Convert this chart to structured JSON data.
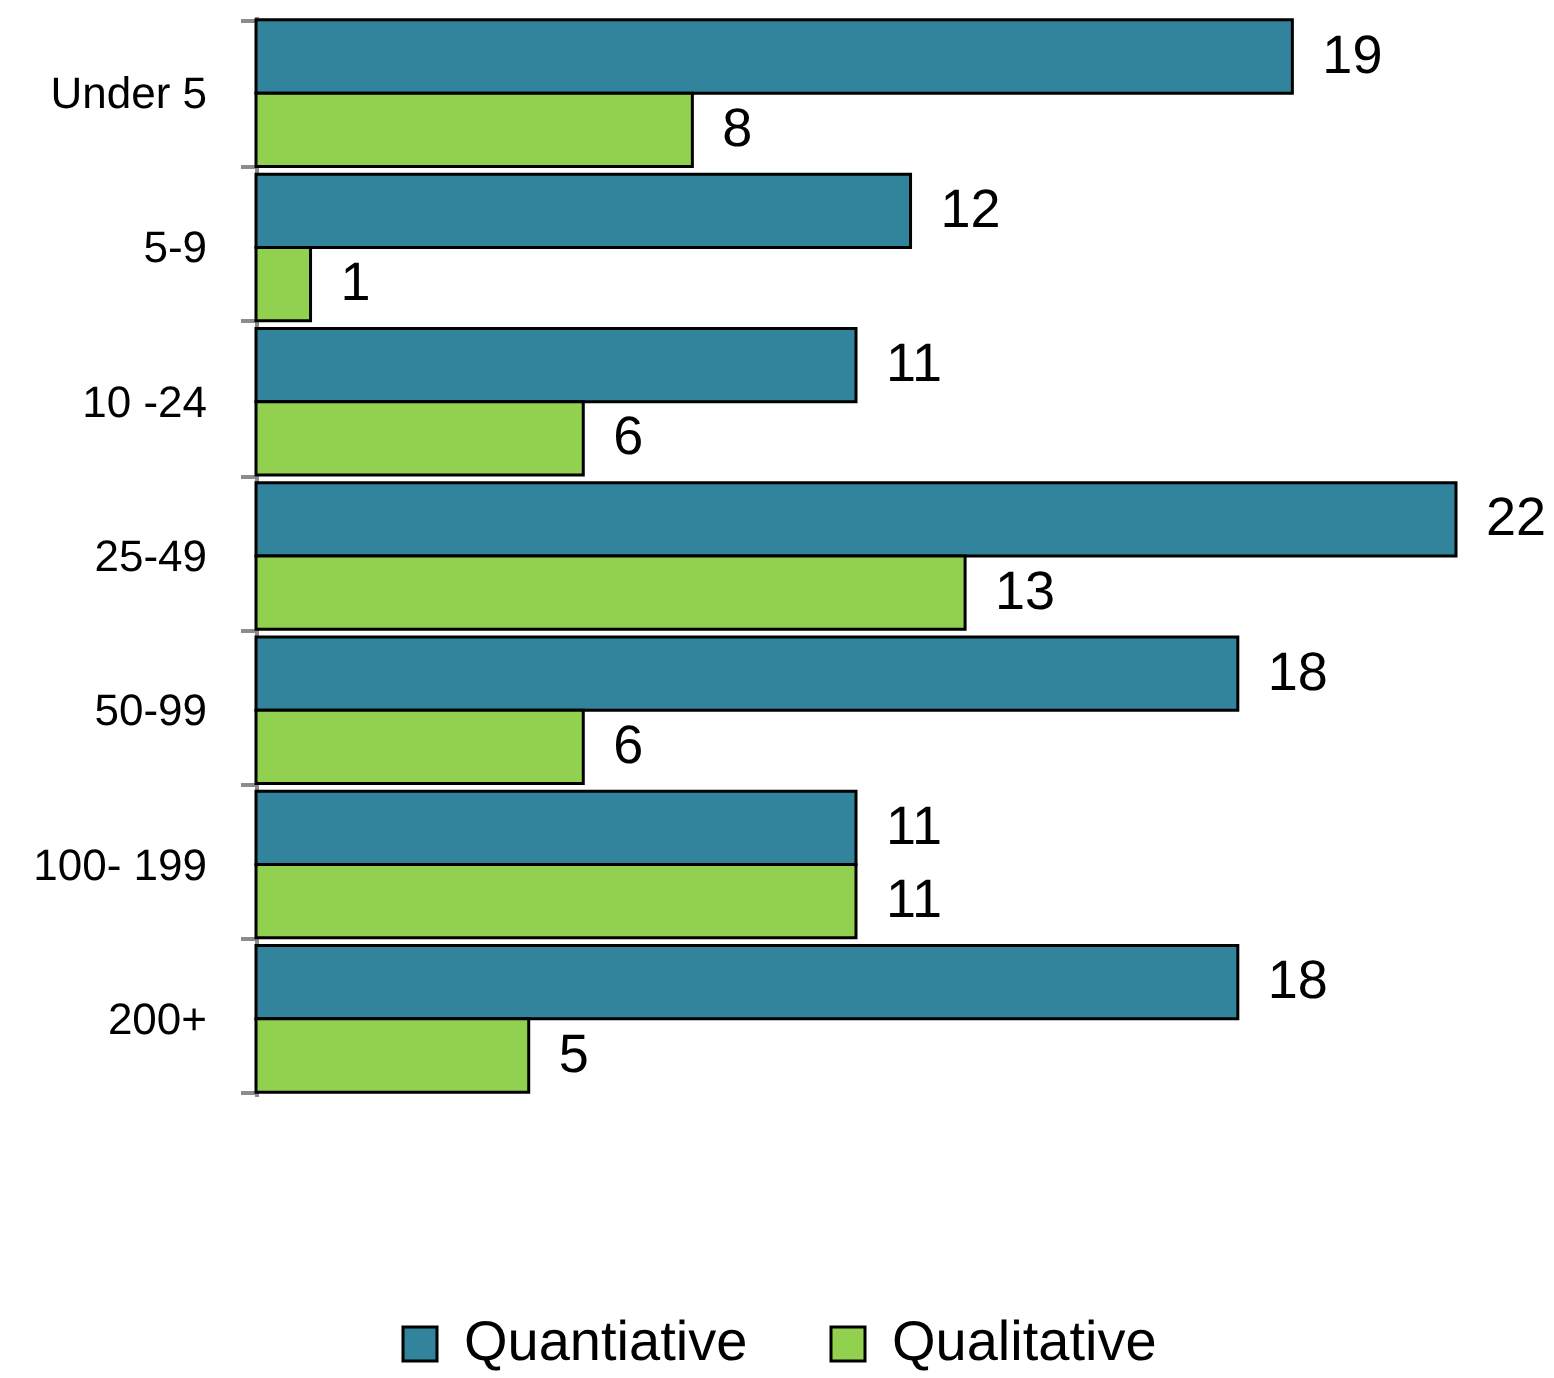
{
  "chart_data": {
    "type": "bar",
    "orientation": "horizontal",
    "categories": [
      "Under 5",
      "5-9",
      "10 -24",
      "25-49",
      "50-99",
      "100- 199",
      "200+"
    ],
    "series": [
      {
        "name": "Quantiative",
        "color": "#31849b",
        "values": [
          19,
          12,
          11,
          22,
          18,
          11,
          18
        ]
      },
      {
        "name": "Qualitative",
        "color": "#92d050",
        "values": [
          8,
          1,
          6,
          13,
          6,
          11,
          5
        ]
      }
    ],
    "data_labels": true,
    "legend": "bottom"
  }
}
